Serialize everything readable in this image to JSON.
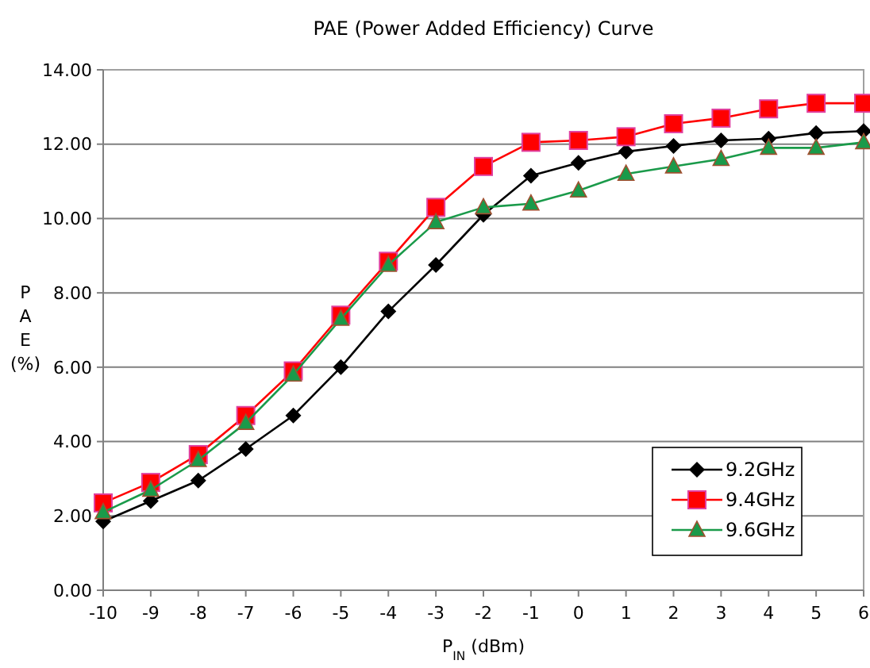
{
  "chart_data": {
    "type": "line",
    "title": "PAE (Power Added Efficiency) Curve",
    "xlabel": "P$_{IN}$ (dBm)",
    "ylabel": "PAE (%)",
    "categories": [
      "-10",
      "-9",
      "-8",
      "-7",
      "-6",
      "-5",
      "-4",
      "-3",
      "-2",
      "-1",
      "0",
      "1",
      "2",
      "3",
      "4",
      "5",
      "6"
    ],
    "series": [
      {
        "name": "9.2GHz",
        "color": "#000000",
        "marker": "diamond",
        "values": [
          1.85,
          2.4,
          2.95,
          3.8,
          4.7,
          6.0,
          7.5,
          8.75,
          10.1,
          11.15,
          11.5,
          11.8,
          11.95,
          12.1,
          12.15,
          12.3,
          12.35
        ]
      },
      {
        "name": "9.4GHz",
        "color": "#ff0000",
        "marker": "square",
        "values": [
          2.35,
          2.9,
          3.65,
          4.7,
          5.9,
          7.4,
          8.85,
          10.3,
          11.4,
          12.05,
          12.1,
          12.2,
          12.55,
          12.7,
          12.95,
          13.1,
          13.1
        ]
      },
      {
        "name": "9.6GHz",
        "color": "#1a9a4a",
        "marker": "triangle",
        "values": [
          2.1,
          2.7,
          3.5,
          4.5,
          5.8,
          7.3,
          8.75,
          9.9,
          10.3,
          10.4,
          10.75,
          11.2,
          11.4,
          11.6,
          11.9,
          11.9,
          12.05
        ]
      }
    ],
    "ylim": [
      0,
      14
    ],
    "yticks": [
      {
        "value": 0,
        "label": "0.00"
      },
      {
        "value": 2,
        "label": "2.00"
      },
      {
        "value": 4,
        "label": "4.00"
      },
      {
        "value": 6,
        "label": "6.00"
      },
      {
        "value": 8,
        "label": "8.00"
      },
      {
        "value": 10,
        "label": "10.00"
      },
      {
        "value": 12,
        "label": "12.00"
      },
      {
        "value": 14,
        "label": "14.00"
      }
    ],
    "grid": "y",
    "legend": "bottom right",
    "line_style": "solid"
  }
}
